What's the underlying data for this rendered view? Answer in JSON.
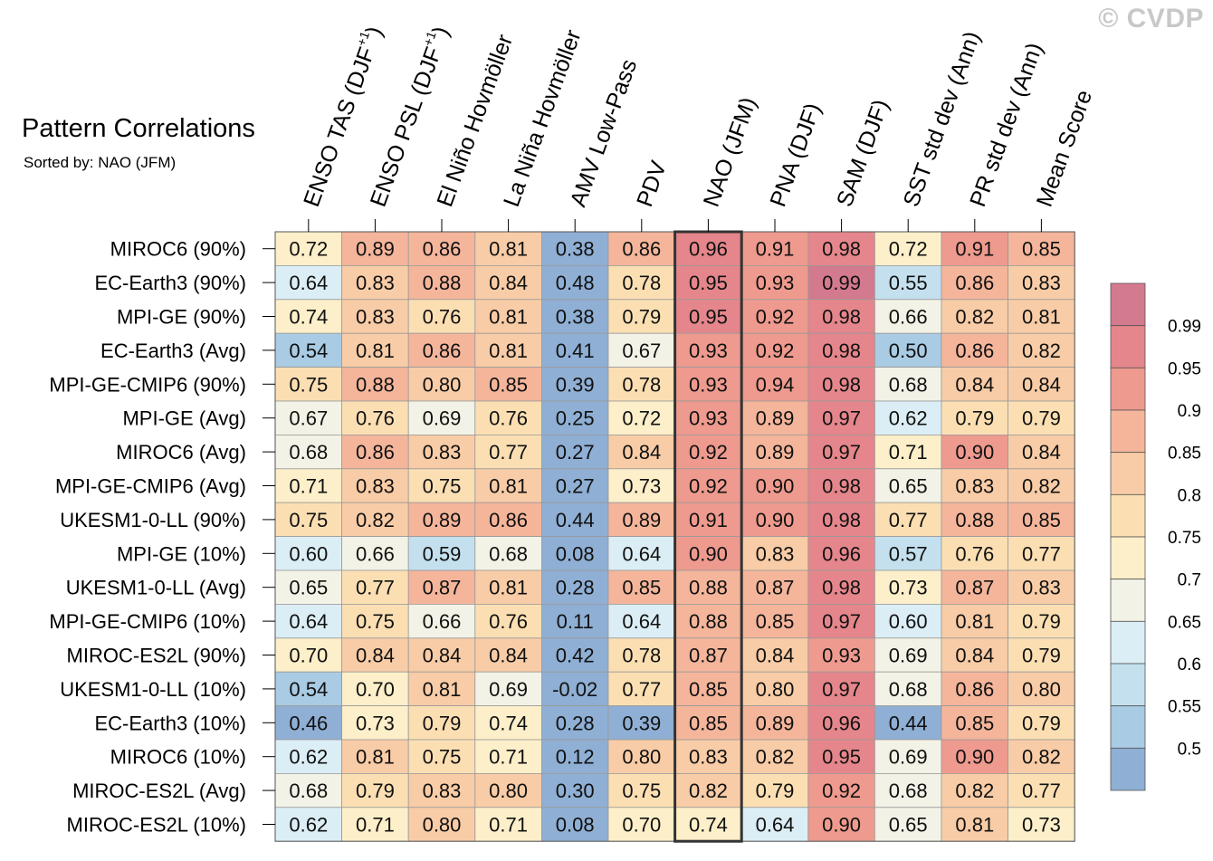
{
  "watermark": "© CVDP",
  "chart_data": {
    "type": "heatmap",
    "title": "Pattern Correlations",
    "subtitle": "Sorted by: NAO (JFM)",
    "highlight_column": "NAO (JFM)",
    "columns": [
      {
        "label": "ENSO TAS (DJF",
        "sup": "+1",
        "suffix": ")"
      },
      {
        "label": "ENSO PSL (DJF",
        "sup": "+1",
        "suffix": ")"
      },
      {
        "label": "El Niño Hovmöller"
      },
      {
        "label": "La Niña Hovmöller"
      },
      {
        "label": "AMV Low-Pass"
      },
      {
        "label": "PDV"
      },
      {
        "label": "NAO (JFM)"
      },
      {
        "label": "PNA (DJF)"
      },
      {
        "label": "SAM (DJF)"
      },
      {
        "label": "SST std dev (Ann)"
      },
      {
        "label": "PR std dev (Ann)"
      },
      {
        "label": "Mean Score"
      }
    ],
    "rows": [
      "MIROC6 (90%)",
      "EC-Earth3 (90%)",
      "MPI-GE (90%)",
      "EC-Earth3 (Avg)",
      "MPI-GE-CMIP6 (90%)",
      "MPI-GE (Avg)",
      "MIROC6 (Avg)",
      "MPI-GE-CMIP6 (Avg)",
      "UKESM1-0-LL (90%)",
      "MPI-GE (10%)",
      "UKESM1-0-LL (Avg)",
      "MPI-GE-CMIP6 (10%)",
      "MIROC-ES2L (90%)",
      "UKESM1-0-LL (10%)",
      "EC-Earth3 (10%)",
      "MIROC6 (10%)",
      "MIROC-ES2L (Avg)",
      "MIROC-ES2L (10%)"
    ],
    "values": [
      [
        "0.72",
        "0.89",
        "0.86",
        "0.81",
        "0.38",
        "0.86",
        "0.96",
        "0.91",
        "0.98",
        "0.72",
        "0.91",
        "0.85"
      ],
      [
        "0.64",
        "0.83",
        "0.88",
        "0.84",
        "0.48",
        "0.78",
        "0.95",
        "0.93",
        "0.99",
        "0.55",
        "0.86",
        "0.83"
      ],
      [
        "0.74",
        "0.83",
        "0.76",
        "0.81",
        "0.38",
        "0.79",
        "0.95",
        "0.92",
        "0.98",
        "0.66",
        "0.82",
        "0.81"
      ],
      [
        "0.54",
        "0.81",
        "0.86",
        "0.81",
        "0.41",
        "0.67",
        "0.93",
        "0.92",
        "0.98",
        "0.50",
        "0.86",
        "0.82"
      ],
      [
        "0.75",
        "0.88",
        "0.80",
        "0.85",
        "0.39",
        "0.78",
        "0.93",
        "0.94",
        "0.98",
        "0.68",
        "0.84",
        "0.84"
      ],
      [
        "0.67",
        "0.76",
        "0.69",
        "0.76",
        "0.25",
        "0.72",
        "0.93",
        "0.89",
        "0.97",
        "0.62",
        "0.79",
        "0.79"
      ],
      [
        "0.68",
        "0.86",
        "0.83",
        "0.77",
        "0.27",
        "0.84",
        "0.92",
        "0.89",
        "0.97",
        "0.71",
        "0.90",
        "0.84"
      ],
      [
        "0.71",
        "0.83",
        "0.75",
        "0.81",
        "0.27",
        "0.73",
        "0.92",
        "0.90",
        "0.98",
        "0.65",
        "0.83",
        "0.82"
      ],
      [
        "0.75",
        "0.82",
        "0.89",
        "0.86",
        "0.44",
        "0.89",
        "0.91",
        "0.90",
        "0.98",
        "0.77",
        "0.88",
        "0.85"
      ],
      [
        "0.60",
        "0.66",
        "0.59",
        "0.68",
        "0.08",
        "0.64",
        "0.90",
        "0.83",
        "0.96",
        "0.57",
        "0.76",
        "0.77"
      ],
      [
        "0.65",
        "0.77",
        "0.87",
        "0.81",
        "0.28",
        "0.85",
        "0.88",
        "0.87",
        "0.98",
        "0.73",
        "0.87",
        "0.83"
      ],
      [
        "0.64",
        "0.75",
        "0.66",
        "0.76",
        "0.11",
        "0.64",
        "0.88",
        "0.85",
        "0.97",
        "0.60",
        "0.81",
        "0.79"
      ],
      [
        "0.70",
        "0.84",
        "0.84",
        "0.84",
        "0.42",
        "0.78",
        "0.87",
        "0.84",
        "0.93",
        "0.69",
        "0.84",
        "0.79"
      ],
      [
        "0.54",
        "0.70",
        "0.81",
        "0.69",
        "-0.02",
        "0.77",
        "0.85",
        "0.80",
        "0.97",
        "0.68",
        "0.86",
        "0.80"
      ],
      [
        "0.46",
        "0.73",
        "0.79",
        "0.74",
        "0.28",
        "0.39",
        "0.85",
        "0.89",
        "0.96",
        "0.44",
        "0.85",
        "0.79"
      ],
      [
        "0.62",
        "0.81",
        "0.75",
        "0.71",
        "0.12",
        "0.80",
        "0.83",
        "0.82",
        "0.95",
        "0.69",
        "0.90",
        "0.82"
      ],
      [
        "0.68",
        "0.79",
        "0.83",
        "0.80",
        "0.30",
        "0.75",
        "0.82",
        "0.79",
        "0.92",
        "0.68",
        "0.82",
        "0.77"
      ],
      [
        "0.62",
        "0.71",
        "0.80",
        "0.71",
        "0.08",
        "0.70",
        "0.74",
        "0.64",
        "0.90",
        "0.65",
        "0.81",
        "0.73"
      ]
    ],
    "colorbar": {
      "levels": [
        "0.99",
        "0.95",
        "0.9",
        "0.85",
        "0.8",
        "0.75",
        "0.7",
        "0.65",
        "0.6",
        "0.55",
        "0.5"
      ],
      "colors": [
        "#d47a8e",
        "#e4868b",
        "#ee9a8e",
        "#f4b59b",
        "#f8cca6",
        "#fbdfb3",
        "#fcefc9",
        "#f3f2e6",
        "#dceef5",
        "#c4e0ee",
        "#a9cbe3",
        "#8fafd4"
      ]
    }
  }
}
